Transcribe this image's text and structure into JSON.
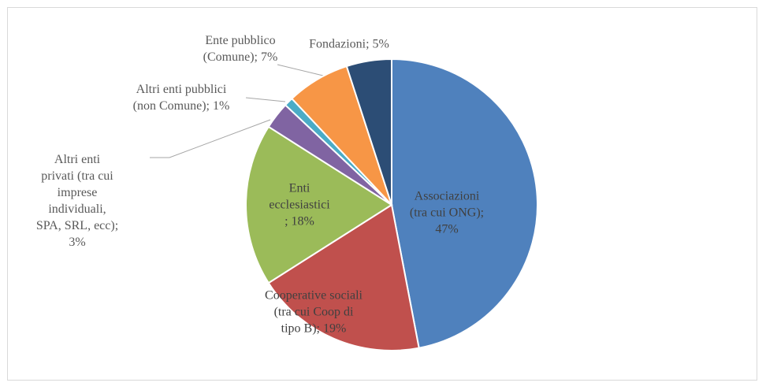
{
  "chart_data": {
    "type": "pie",
    "values": [
      47,
      19,
      18,
      3,
      1,
      7,
      5
    ],
    "value_labels": [
      "Associazioni\n(tra cui ONG);\n47%",
      "Cooperative sociali\n(tra cui Coop di\ntipo B); 19%",
      "Enti\necclesiastici\n; 18%",
      "Altri enti\nprivati (tra cui\nimprese\nindividuali,\nSPA, SRL, ecc);\n3%",
      "Altri enti pubblici\n(non Comune); 1%",
      "Ente pubblico\n(Comune); 7%",
      "Fondazioni; 5%"
    ],
    "colors": [
      "#4f81bd",
      "#c0504d",
      "#9bbb59",
      "#8064a2",
      "#4bacc6",
      "#f79646",
      "#2c4d75"
    ],
    "start_angle": 0,
    "direction": "clockwise"
  }
}
